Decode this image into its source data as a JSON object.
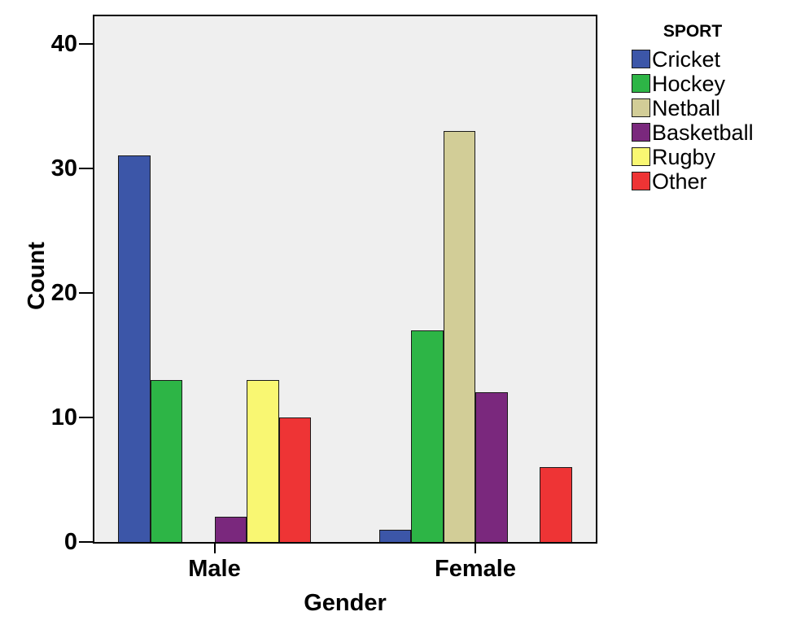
{
  "chart_data": {
    "type": "bar",
    "title": "",
    "xlabel": "Gender",
    "ylabel": "Count",
    "legend_title": "SPORT",
    "legend_position": "outside-top-right",
    "categories": [
      "Male",
      "Female"
    ],
    "series": [
      {
        "name": "Cricket",
        "color": "#3C56A8",
        "values": [
          31,
          1
        ]
      },
      {
        "name": "Hockey",
        "color": "#2DB546",
        "values": [
          13,
          17
        ]
      },
      {
        "name": "Netball",
        "color": "#D2CD97",
        "values": [
          0,
          33
        ]
      },
      {
        "name": "Basketball",
        "color": "#7A287D",
        "values": [
          2,
          12
        ]
      },
      {
        "name": "Rugby",
        "color": "#F9F772",
        "values": [
          13,
          0
        ]
      },
      {
        "name": "Other",
        "color": "#EE3435",
        "values": [
          10,
          6
        ]
      }
    ],
    "y_ticks": [
      0,
      10,
      20,
      30,
      40
    ],
    "ylim": [
      0,
      42.2
    ],
    "grid": false,
    "plot_background": "#EFEFEF",
    "axis_color": "#000000",
    "bar_border_color": "#1a1a1a"
  }
}
